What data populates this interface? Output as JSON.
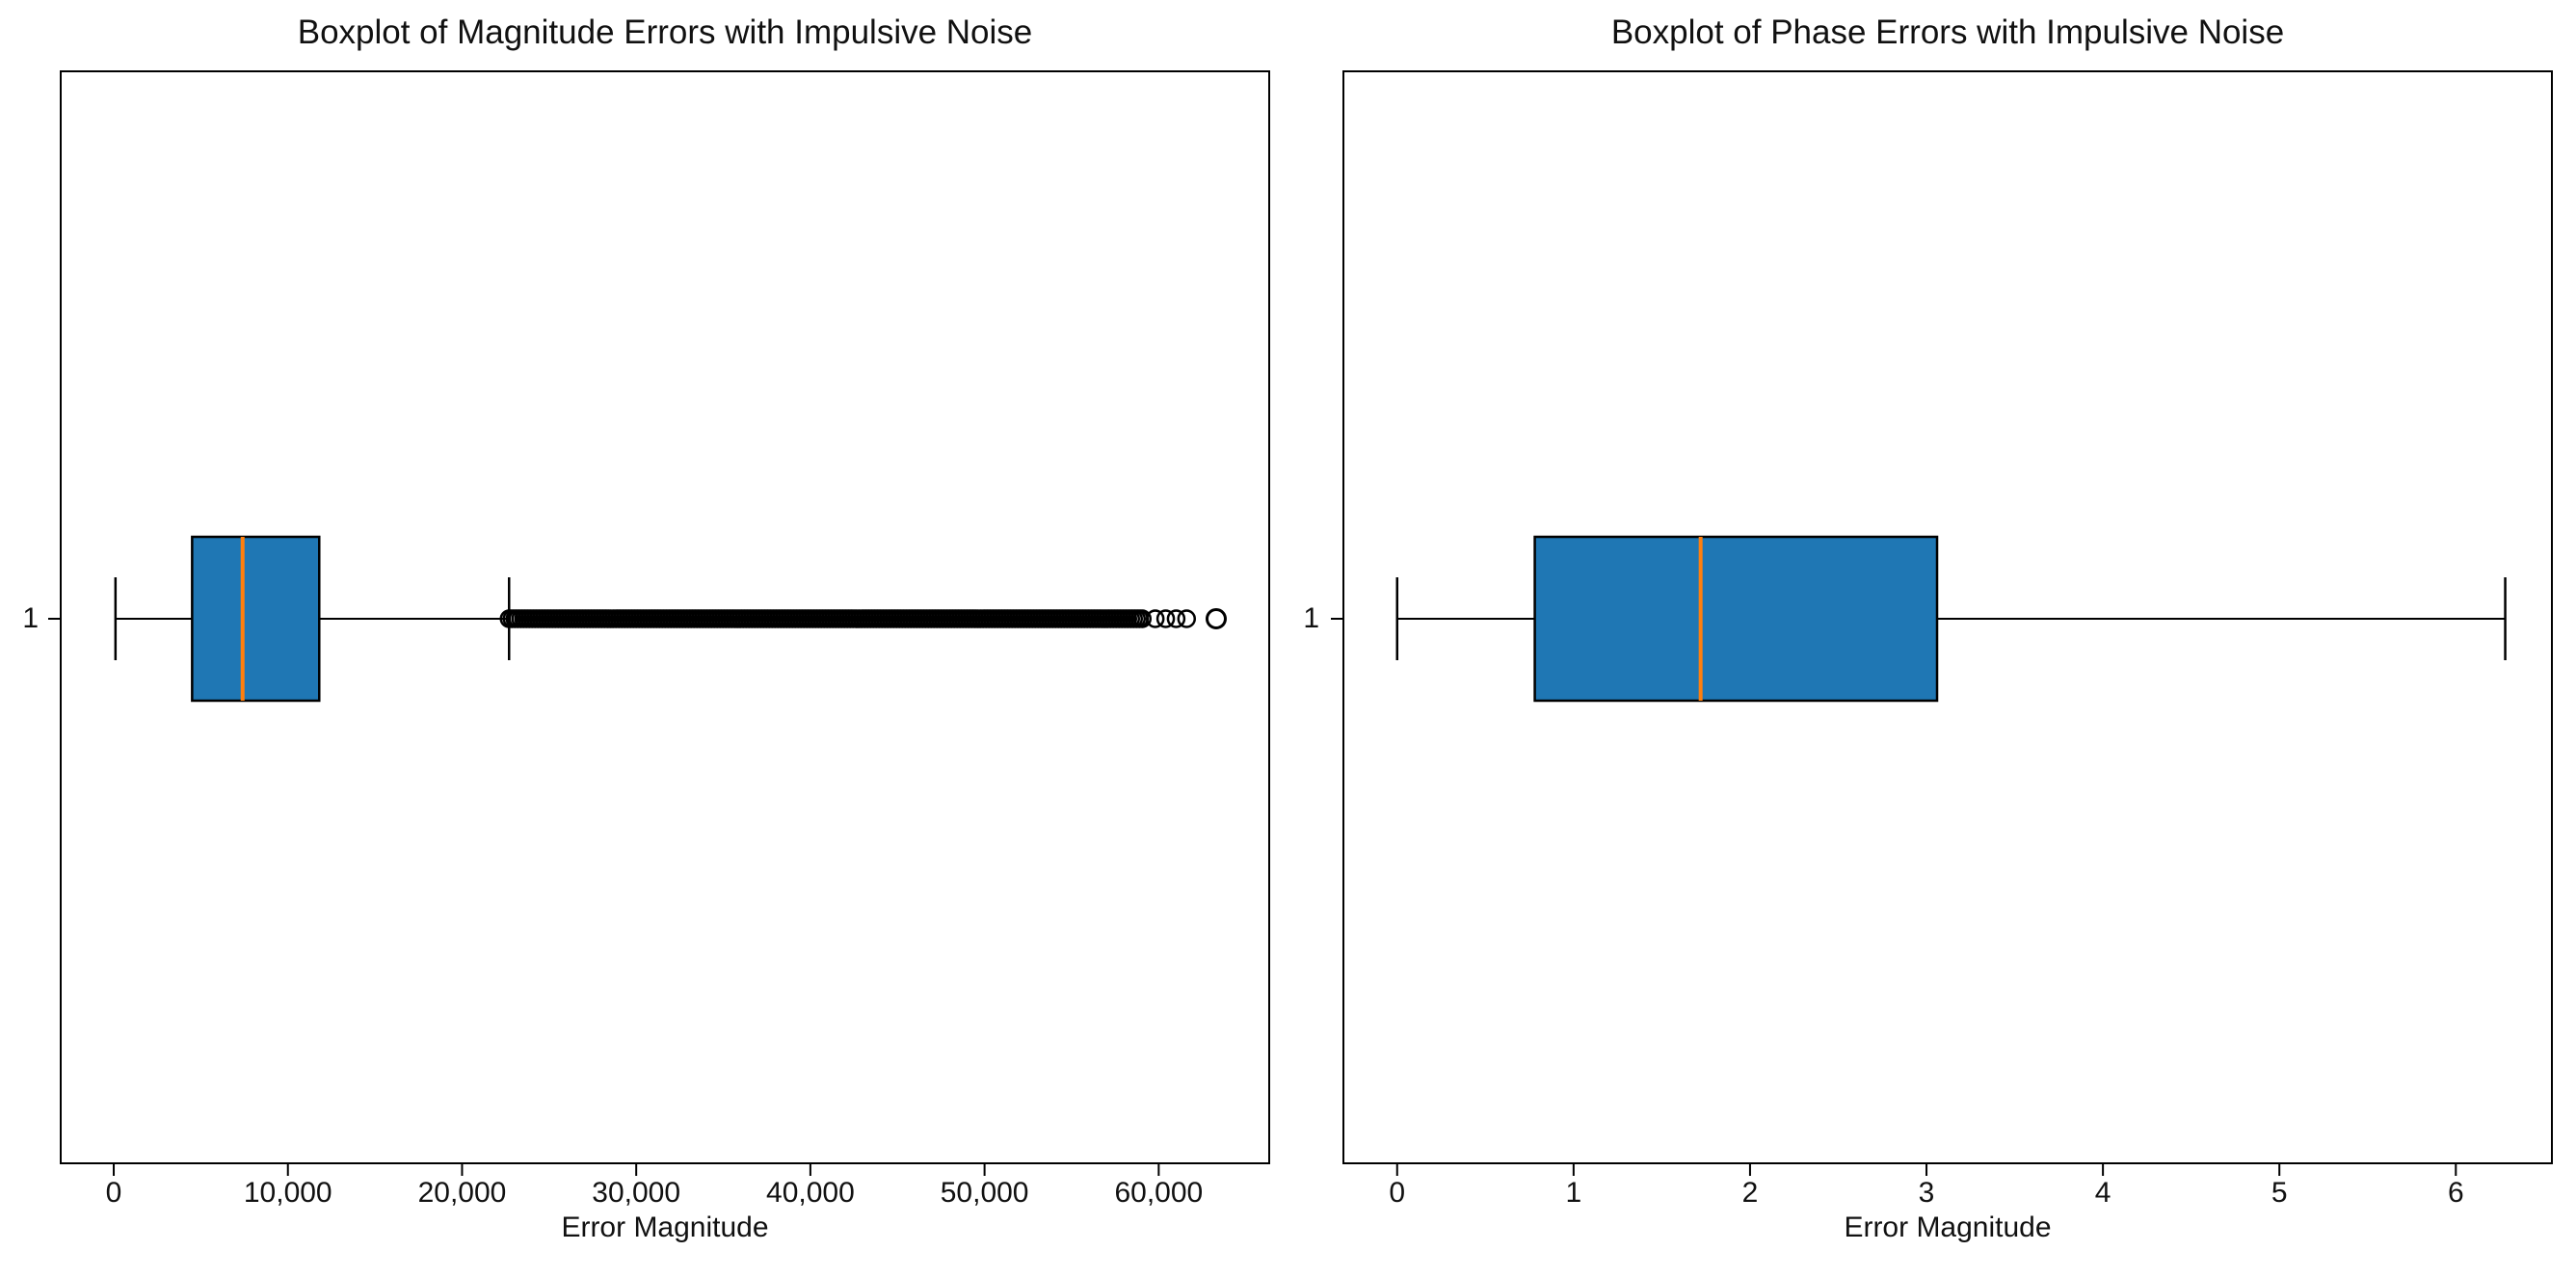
{
  "colors": {
    "box_fill": "#1f77b4",
    "median_line": "#ff7f0e",
    "axis": "#000000"
  },
  "chart_data": [
    {
      "type": "box",
      "title": "Boxplot of Magnitude Errors with Impulsive Noise",
      "xlabel": "Error Magnitude",
      "ytick_label": "1",
      "orientation": "horizontal",
      "grid": false,
      "xlim": [
        -3100,
        66400
      ],
      "xtick_values": [
        0,
        10000,
        20000,
        30000,
        40000,
        50000,
        60000
      ],
      "xtick_labels": [
        "0",
        "10,000",
        "20,000",
        "30,000",
        "40,000",
        "50,000",
        "60,000"
      ],
      "box": {
        "whisker_low": 100,
        "q1": 4500,
        "median": 7400,
        "q3": 11800,
        "whisker_high": 22700
      },
      "outliers": {
        "dense_band": [
          22700,
          59200
        ],
        "discrete": [
          59800,
          60400,
          61000,
          61600
        ],
        "extreme": 63300
      }
    },
    {
      "type": "box",
      "title": "Boxplot of Phase Errors with Impulsive Noise",
      "xlabel": "Error Magnitude",
      "ytick_label": "1",
      "orientation": "horizontal",
      "grid": false,
      "xlim": [
        -0.31,
        6.55
      ],
      "xtick_values": [
        0,
        1,
        2,
        3,
        4,
        5,
        6
      ],
      "xtick_labels": [
        "0",
        "1",
        "2",
        "3",
        "4",
        "5",
        "6"
      ],
      "box": {
        "whisker_low": 0.0,
        "q1": 0.78,
        "median": 1.72,
        "q3": 3.06,
        "whisker_high": 6.28
      },
      "outliers": null
    }
  ]
}
